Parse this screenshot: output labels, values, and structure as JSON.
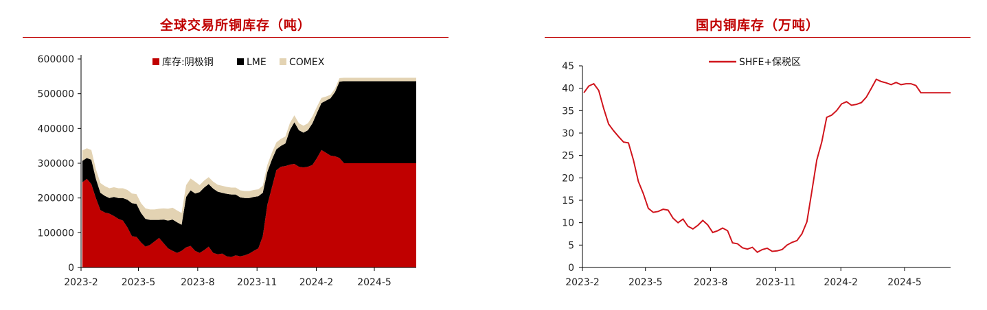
{
  "chart_data": [
    {
      "type": "area",
      "stacked": true,
      "title": "全球交易所铜库存（吨）",
      "xlabel": "",
      "ylabel": "",
      "ylim": [
        0,
        600000
      ],
      "yticks": [
        "0",
        "100000",
        "200000",
        "300000",
        "400000",
        "500000",
        "600000"
      ],
      "xticks": [
        "2023-2",
        "2023-5",
        "2023-8",
        "2023-11",
        "2024-2",
        "2024-5"
      ],
      "legend_position": "top",
      "x_start": "2023-02-01",
      "x_end": "2024-07-05",
      "x": [
        "2023-02-03",
        "2023-02-10",
        "2023-02-17",
        "2023-02-24",
        "2023-03-03",
        "2023-03-10",
        "2023-03-17",
        "2023-03-24",
        "2023-03-31",
        "2023-04-07",
        "2023-04-14",
        "2023-04-21",
        "2023-04-28",
        "2023-05-05",
        "2023-05-12",
        "2023-05-19",
        "2023-05-26",
        "2023-06-02",
        "2023-06-09",
        "2023-06-16",
        "2023-06-23",
        "2023-06-30",
        "2023-07-07",
        "2023-07-14",
        "2023-07-21",
        "2023-07-28",
        "2023-08-04",
        "2023-08-11",
        "2023-08-18",
        "2023-08-25",
        "2023-09-01",
        "2023-09-08",
        "2023-09-15",
        "2023-09-22",
        "2023-09-29",
        "2023-10-06",
        "2023-10-13",
        "2023-10-20",
        "2023-10-27",
        "2023-11-03",
        "2023-11-10",
        "2023-11-17",
        "2023-11-24",
        "2023-12-01",
        "2023-12-08",
        "2023-12-15",
        "2023-12-22",
        "2023-12-29",
        "2024-01-05",
        "2024-01-12",
        "2024-01-19",
        "2024-01-26",
        "2024-02-02",
        "2024-02-09",
        "2024-02-16",
        "2024-02-23",
        "2024-03-01",
        "2024-03-08",
        "2024-03-15",
        "2024-03-22",
        "2024-03-29",
        "2024-04-05",
        "2024-04-12",
        "2024-04-19",
        "2024-04-26",
        "2024-05-03",
        "2024-05-10",
        "2024-05-17",
        "2024-05-24",
        "2024-05-31",
        "2024-06-07",
        "2024-06-14",
        "2024-06-21",
        "2024-06-28",
        "2024-07-05"
      ],
      "series": [
        {
          "name": "库存:阴极铜",
          "color": "#c00000",
          "values": [
            245000,
            255000,
            240000,
            200000,
            165000,
            158000,
            155000,
            148000,
            140000,
            135000,
            115000,
            90000,
            88000,
            72000,
            60000,
            65000,
            75000,
            85000,
            70000,
            55000,
            48000,
            42000,
            48000,
            58000,
            62000,
            48000,
            42000,
            50000,
            60000,
            42000,
            38000,
            40000,
            32000,
            30000,
            35000,
            32000,
            35000,
            40000,
            48000,
            55000,
            90000,
            180000,
            230000,
            280000,
            290000,
            292000,
            296000,
            298000,
            290000,
            288000,
            290000,
            295000,
            315000,
            338000,
            330000,
            322000,
            320000,
            315000,
            300000,
            300000,
            300000,
            300000,
            300000,
            300000,
            300000,
            300000,
            300000,
            300000,
            300000,
            300000,
            300000,
            300000,
            300000,
            300000,
            300000
          ]
        },
        {
          "name": "LME",
          "color": "#000000",
          "values": [
            62000,
            60000,
            70000,
            55000,
            50000,
            48000,
            45000,
            55000,
            60000,
            65000,
            80000,
            95000,
            95000,
            85000,
            80000,
            72000,
            62000,
            52000,
            68000,
            80000,
            90000,
            88000,
            75000,
            145000,
            160000,
            165000,
            175000,
            180000,
            180000,
            185000,
            180000,
            175000,
            180000,
            180000,
            175000,
            170000,
            165000,
            160000,
            155000,
            150000,
            125000,
            95000,
            80000,
            60000,
            60000,
            65000,
            100000,
            120000,
            105000,
            100000,
            105000,
            120000,
            130000,
            135000,
            150000,
            165000,
            185000,
            220000,
            236000,
            236000,
            236000,
            236000,
            236000,
            236000,
            236000,
            236000,
            236000,
            236000,
            236000,
            236000,
            236000,
            236000,
            236000,
            236000,
            236000
          ]
        },
        {
          "name": "COMEX",
          "color": "#e3d3b3",
          "values": [
            30000,
            28000,
            28000,
            28000,
            28000,
            28000,
            28000,
            28000,
            28000,
            28000,
            28000,
            28000,
            28000,
            28000,
            30000,
            30000,
            30000,
            32000,
            32000,
            34000,
            34000,
            34000,
            34000,
            34000,
            34000,
            34000,
            20000,
            20000,
            20000,
            20000,
            20000,
            20000,
            20000,
            20000,
            20000,
            20000,
            20000,
            20000,
            20000,
            20000,
            20000,
            20000,
            20000,
            20000,
            20000,
            20000,
            20000,
            20000,
            20000,
            20000,
            20000,
            20000,
            18000,
            15000,
            12000,
            10000,
            10000,
            10000,
            10000,
            10000,
            10000,
            10000,
            10000,
            10000,
            10000,
            10000,
            10000,
            10000,
            10000,
            10000,
            10000,
            10000,
            10000,
            10000,
            10000
          ]
        }
      ]
    },
    {
      "type": "line",
      "title": "国内铜库存（万吨）",
      "xlabel": "",
      "ylabel": "",
      "ylim": [
        0,
        45
      ],
      "yticks": [
        "0",
        "5",
        "10",
        "15",
        "20",
        "25",
        "30",
        "35",
        "40",
        "45"
      ],
      "xticks": [
        "2023-2",
        "2023-5",
        "2023-8",
        "2023-11",
        "2024-2",
        "2024-5"
      ],
      "legend_position": "top",
      "x_start": "2023-02-01",
      "x_end": "2024-07-05",
      "x": [
        "2023-02-03",
        "2023-02-10",
        "2023-02-17",
        "2023-02-24",
        "2023-03-03",
        "2023-03-10",
        "2023-03-17",
        "2023-03-24",
        "2023-03-31",
        "2023-04-07",
        "2023-04-14",
        "2023-04-21",
        "2023-04-28",
        "2023-05-05",
        "2023-05-12",
        "2023-05-19",
        "2023-05-26",
        "2023-06-02",
        "2023-06-09",
        "2023-06-16",
        "2023-06-23",
        "2023-06-30",
        "2023-07-07",
        "2023-07-14",
        "2023-07-21",
        "2023-07-28",
        "2023-08-04",
        "2023-08-11",
        "2023-08-18",
        "2023-08-25",
        "2023-09-01",
        "2023-09-08",
        "2023-09-15",
        "2023-09-22",
        "2023-09-29",
        "2023-10-06",
        "2023-10-13",
        "2023-10-20",
        "2023-10-27",
        "2023-11-03",
        "2023-11-10",
        "2023-11-17",
        "2023-11-24",
        "2023-12-01",
        "2023-12-08",
        "2023-12-15",
        "2023-12-22",
        "2023-12-29",
        "2024-01-05",
        "2024-01-12",
        "2024-01-19",
        "2024-01-26",
        "2024-02-02",
        "2024-02-09",
        "2024-02-16",
        "2024-02-23",
        "2024-03-01",
        "2024-03-08",
        "2024-03-15",
        "2024-03-22",
        "2024-03-29",
        "2024-04-05",
        "2024-04-12",
        "2024-04-19",
        "2024-04-26",
        "2024-05-03",
        "2024-05-10",
        "2024-05-17",
        "2024-05-24",
        "2024-05-31",
        "2024-06-07",
        "2024-06-14",
        "2024-06-21",
        "2024-06-28",
        "2024-07-05"
      ],
      "series": [
        {
          "name": "SHFE+保税区",
          "color": "#d0141c",
          "values": [
            39.0,
            40.5,
            41.0,
            39.5,
            35.5,
            32.0,
            30.5,
            29.2,
            28.0,
            27.8,
            24.0,
            19.2,
            16.5,
            13.2,
            12.3,
            12.5,
            13.0,
            12.8,
            11.0,
            10.0,
            10.8,
            9.2,
            8.6,
            9.4,
            10.5,
            9.5,
            7.8,
            8.2,
            8.8,
            8.2,
            5.5,
            5.3,
            4.4,
            4.1,
            4.5,
            3.4,
            4.0,
            4.3,
            3.6,
            3.7,
            4.0,
            5.0,
            5.6,
            6.0,
            7.5,
            10.2,
            17.0,
            24.0,
            28.0,
            33.5,
            34.0,
            35.0,
            36.5,
            37.0,
            36.2,
            36.4,
            36.8,
            38.0,
            40.0,
            42.0,
            41.5,
            41.2,
            40.8,
            41.3,
            40.8,
            41.0,
            41.0,
            40.6,
            39.0,
            39.0,
            39.0,
            39.0,
            39.0,
            39.0,
            39.0
          ]
        }
      ]
    }
  ]
}
